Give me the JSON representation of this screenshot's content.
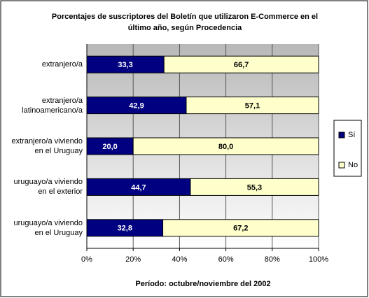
{
  "chart_data": {
    "type": "stacked_barh",
    "title": [
      "Porcentajes de suscriptores del Boletín que utilizaron E-Commerce en el",
      "último año, según Procedencia"
    ],
    "categories": [
      "extranjero/a",
      "extranjero/a\nlatinoamericano/a",
      "extranjero/a viviendo\nen el Uruguay",
      "uruguayo/a viviendo\nen el exterior",
      "uruguayo/a viviendo\nen el Uruguay"
    ],
    "series": [
      {
        "name": "Sí",
        "color": "#000080",
        "values": [
          33.3,
          42.9,
          20.0,
          44.7,
          32.8
        ],
        "value_labels": [
          "33,3",
          "42,9",
          "20,0",
          "44,7",
          "32,8"
        ]
      },
      {
        "name": "No",
        "color": "#ffffcc",
        "values": [
          66.7,
          57.1,
          80.0,
          55.3,
          67.2
        ],
        "value_labels": [
          "66,7",
          "57,1",
          "80,0",
          "55,3",
          "67,2"
        ]
      }
    ],
    "xlim": [
      0,
      100
    ],
    "xticks": [
      {
        "value": 0,
        "label": "0%"
      },
      {
        "value": 20,
        "label": "20%"
      },
      {
        "value": 40,
        "label": "40%"
      },
      {
        "value": 60,
        "label": "60%"
      },
      {
        "value": 80,
        "label": "80%"
      },
      {
        "value": 100,
        "label": "100%"
      }
    ],
    "xlabel": "Período: octubre/noviembre del 2002",
    "grid": true,
    "legend": "right"
  }
}
